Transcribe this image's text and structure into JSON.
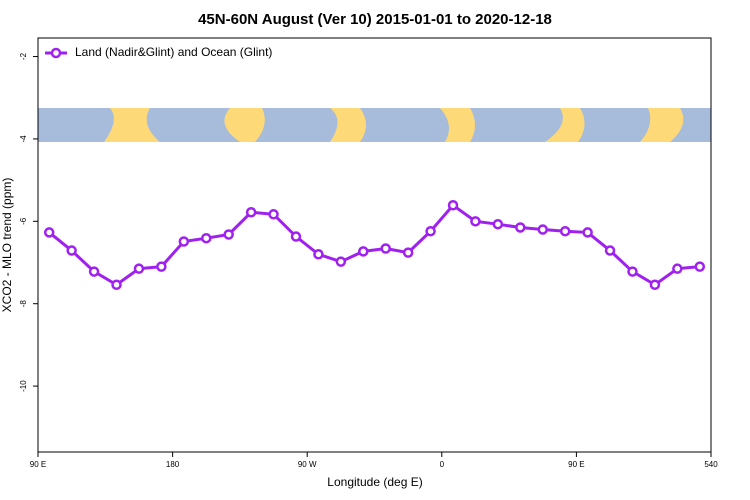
{
  "chart_data": {
    "type": "line",
    "title": "45N-60N August (Ver 10)   2015-01-01 to 2020-12-18",
    "x_label": "Longitude (deg E)",
    "y_label": "XCO2 - MLO trend (ppm)",
    "x": [
      97.5,
      112.5,
      127.5,
      142.5,
      157.5,
      172.5,
      187.5,
      202.5,
      217.5,
      232.5,
      247.5,
      262.5,
      277.5,
      292.5,
      307.5,
      322.5,
      337.5,
      352.5,
      367.5,
      382.5,
      397.5,
      412.5,
      427.5,
      442.5,
      457.5,
      472.5,
      487.5,
      502.5,
      517.5,
      532.5
    ],
    "series": [
      {
        "name": "Land (Nadir&Glint) and Ocean (Glint)",
        "color": "#a020f0",
        "values": [
          -6.27,
          -6.71,
          -7.22,
          -7.54,
          -7.15,
          -7.1,
          -6.49,
          -6.41,
          -6.32,
          -5.78,
          -5.83,
          -6.37,
          -6.8,
          -6.98,
          -6.73,
          -6.66,
          -6.76,
          -6.24,
          -5.61,
          -6.0,
          -6.07,
          -6.15,
          -6.2,
          -6.24,
          -6.27,
          -6.71,
          -7.22,
          -7.54,
          -7.15,
          -7.1
        ]
      }
    ],
    "xlim": [
      90,
      540
    ],
    "xticks": [
      {
        "value": 90,
        "label": "90 E"
      },
      180,
      {
        "value": 270,
        "label": "90 W"
      },
      {
        "value": 360,
        "label": "0"
      },
      {
        "value": 450,
        "label": "90 E"
      },
      540
    ],
    "ylim": [
      -11.6,
      -1.55
    ],
    "yticks": [
      -2,
      -4,
      -6,
      -8,
      -10
    ],
    "legend": "top-left"
  }
}
